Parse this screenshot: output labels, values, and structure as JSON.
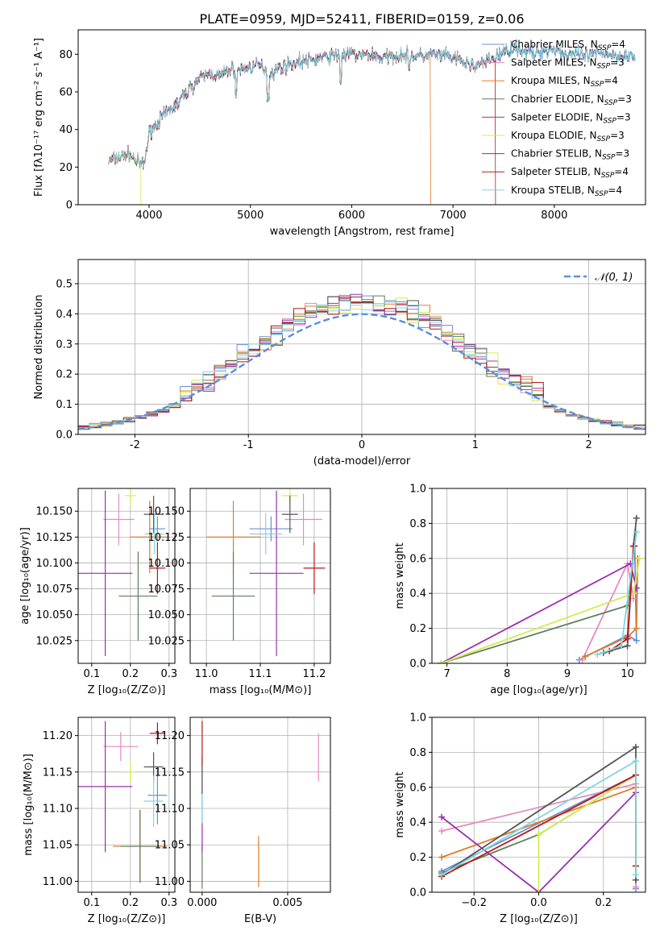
{
  "figure_title": "PLATE=0959, MJD=52411, FIBERID=0159, z=0.06",
  "colors": {
    "Chabrier MILES": "#6a8fd8",
    "Salpeter MILES": "#e88ac0",
    "Kroupa MILES": "#e07b28",
    "Chabrier ELODIE": "#5e7f5e",
    "Salpeter ELODIE": "#9b2fb0",
    "Kroupa ELODIE": "#d4ec50",
    "Chabrier STELIB": "#555555",
    "Salpeter STELIB": "#b81818",
    "Kroupa STELIB": "#7fd6e0",
    "gaussian": "#5b8fd8",
    "grid": "#b0b0b0"
  },
  "chart_data": [
    {
      "id": "spectrum",
      "type": "line",
      "xlabel": "wavelength [Angstrom, rest frame]",
      "ylabel": "Flux [fλ10⁻¹⁷ erg cm⁻² s⁻¹ A⁻¹]",
      "xlim": [
        3300,
        8900
      ],
      "ylim": [
        0,
        93
      ],
      "xticks": [
        4000,
        5000,
        6000,
        7000,
        8000
      ],
      "yticks": [
        0,
        20,
        40,
        60,
        80
      ],
      "grid": false,
      "legend": "top-right",
      "series": [
        {
          "name": "Chabrier MILES, N_SSP=4"
        },
        {
          "name": "Salpeter MILES, N_SSP=3"
        },
        {
          "name": "Kroupa MILES, N_SSP=4"
        },
        {
          "name": "Chabrier ELODIE, N_SSP=3"
        },
        {
          "name": "Salpeter ELODIE, N_SSP=3"
        },
        {
          "name": "Kroupa ELODIE, N_SSP=3"
        },
        {
          "name": "Chabrier STELIB, N_SSP=3"
        },
        {
          "name": "Salpeter STELIB, N_SSP=4"
        },
        {
          "name": "Kroupa STELIB, N_SSP=4"
        }
      ],
      "envelope": {
        "x": [
          3600,
          3700,
          3800,
          3900,
          3950,
          4000,
          4100,
          4200,
          4300,
          4400,
          4500,
          4600,
          4700,
          4800,
          4900,
          5000,
          5100,
          5200,
          5300,
          5400,
          5500,
          5600,
          5700,
          5800,
          5900,
          6000,
          6100,
          6200,
          6300,
          6400,
          6500,
          6600,
          6700,
          6800,
          6900,
          7000,
          7100,
          7200,
          7300,
          7400,
          7500,
          7600,
          7700,
          7800,
          7900,
          8000,
          8100,
          8200,
          8300,
          8400,
          8500,
          8600,
          8700,
          8800
        ],
        "y": [
          23,
          25,
          27,
          22,
          21,
          38,
          45,
          50,
          55,
          62,
          67,
          70,
          68,
          72,
          72,
          73,
          74,
          70,
          73,
          75,
          76,
          77,
          78,
          79,
          80,
          80,
          79,
          80,
          78,
          79,
          80,
          79,
          79,
          80,
          79,
          78,
          76,
          74,
          75,
          78,
          81,
          84,
          82,
          80,
          82,
          83,
          80,
          80,
          79,
          80,
          81,
          79,
          80,
          78
        ]
      },
      "dropouts": [
        {
          "x": 3920,
          "name": "Kroupa ELODIE"
        },
        {
          "x": 6780,
          "name": "Kroupa MILES"
        },
        {
          "x": 7420,
          "name": "Salpeter STELIB"
        }
      ]
    },
    {
      "id": "residuals",
      "type": "histogram",
      "xlabel": "(data-model)/error",
      "ylabel": "Normed distribution",
      "xlim": [
        -2.5,
        2.5
      ],
      "ylim": [
        0,
        0.58
      ],
      "xticks": [
        -2,
        -1,
        0,
        1,
        2
      ],
      "yticks": [
        0.0,
        0.1,
        0.2,
        0.3,
        0.4,
        0.5
      ],
      "grid": true,
      "legend": "top-right",
      "legend_label": "𝒩(0, 1)",
      "bin_width": 0.1
    },
    {
      "id": "age_vs_Z",
      "type": "scatter",
      "xlabel": "Z [log₁₀(Z/Z⊙)]",
      "ylabel": "age  [log₁₀(age/yr)]",
      "xlim": [
        0.065,
        0.315
      ],
      "ylim": [
        10.003,
        10.172
      ],
      "xticks": [
        0.1,
        0.2,
        0.3
      ],
      "yticks": [
        10.025,
        10.05,
        10.075,
        10.1,
        10.125,
        10.15
      ],
      "grid": true,
      "points": [
        {
          "name": "Chabrier MILES",
          "x": 0.27,
          "xerr": 0.02,
          "y": 10.133,
          "yerr": 0.012
        },
        {
          "name": "Salpeter MILES",
          "x": 0.17,
          "xerr": 0.04,
          "y": 10.142,
          "yerr": 0.025
        },
        {
          "name": "Kroupa MILES",
          "x": 0.25,
          "xerr": 0.05,
          "y": 10.125,
          "yerr": 0.035
        },
        {
          "name": "Chabrier ELODIE",
          "x": 0.22,
          "xerr": 0.05,
          "y": 10.068,
          "yerr": 0.043
        },
        {
          "name": "Salpeter ELODIE",
          "x": 0.135,
          "xerr": 0.07,
          "y": 10.09,
          "yerr": 0.08
        },
        {
          "name": "Kroupa ELODIE",
          "x": 0.2,
          "xerr": 0.015,
          "y": 10.165,
          "yerr": 0.01
        },
        {
          "name": "Chabrier STELIB",
          "x": 0.26,
          "xerr": 0.025,
          "y": 10.147,
          "yerr": 0.018
        },
        {
          "name": "Salpeter STELIB",
          "x": 0.27,
          "xerr": 0.02,
          "y": 10.095,
          "yerr": 0.025
        },
        {
          "name": "Kroupa STELIB",
          "x": 0.262,
          "xerr": 0.025,
          "y": 10.128,
          "yerr": 0.02
        }
      ]
    },
    {
      "id": "age_vs_mass",
      "type": "scatter",
      "xlabel": "mass [log₁₀(M/M⊙)]",
      "ylabel": "",
      "xlim": [
        10.97,
        11.23
      ],
      "ylim": [
        10.003,
        10.172
      ],
      "xticks": [
        11.0,
        11.1,
        11.2
      ],
      "yticks": [
        10.025,
        10.05,
        10.075,
        10.1,
        10.125,
        10.15
      ],
      "grid": true,
      "points": [
        {
          "name": "Chabrier MILES",
          "x": 11.12,
          "xerr": 0.04,
          "y": 10.133,
          "yerr": 0.012
        },
        {
          "name": "Salpeter MILES",
          "x": 11.18,
          "xerr": 0.035,
          "y": 10.142,
          "yerr": 0.025
        },
        {
          "name": "Kroupa MILES",
          "x": 11.05,
          "xerr": 0.05,
          "y": 10.125,
          "yerr": 0.035
        },
        {
          "name": "Chabrier ELODIE",
          "x": 11.05,
          "xerr": 0.04,
          "y": 10.068,
          "yerr": 0.043
        },
        {
          "name": "Salpeter ELODIE",
          "x": 11.13,
          "xerr": 0.05,
          "y": 10.09,
          "yerr": 0.08
        },
        {
          "name": "Kroupa ELODIE",
          "x": 11.155,
          "xerr": 0.015,
          "y": 10.165,
          "yerr": 0.01
        },
        {
          "name": "Chabrier STELIB",
          "x": 11.155,
          "xerr": 0.015,
          "y": 10.147,
          "yerr": 0.018
        },
        {
          "name": "Salpeter STELIB",
          "x": 11.2,
          "xerr": 0.02,
          "y": 10.095,
          "yerr": 0.025
        },
        {
          "name": "Kroupa STELIB",
          "x": 11.11,
          "xerr": 0.03,
          "y": 10.128,
          "yerr": 0.02
        }
      ]
    },
    {
      "id": "mass_vs_Z",
      "type": "scatter",
      "xlabel": "Z [log₁₀(Z/Z⊙)]",
      "ylabel": "mass [log₁₀(M/M⊙)]",
      "xlim": [
        0.065,
        0.315
      ],
      "ylim": [
        10.985,
        11.225
      ],
      "xticks": [
        0.1,
        0.2,
        0.3
      ],
      "yticks": [
        11.0,
        11.05,
        11.1,
        11.15,
        11.2
      ],
      "grid": true,
      "points": [
        {
          "name": "Chabrier MILES",
          "x": 0.27,
          "xerr": 0.025,
          "y": 11.118,
          "yerr": 0.04
        },
        {
          "name": "Salpeter MILES",
          "x": 0.175,
          "xerr": 0.045,
          "y": 11.185,
          "yerr": 0.02
        },
        {
          "name": "Kroupa MILES",
          "x": 0.225,
          "xerr": 0.07,
          "y": 11.048,
          "yerr": 0.05
        },
        {
          "name": "Chabrier ELODIE",
          "x": 0.225,
          "xerr": 0.05,
          "y": 11.048,
          "yerr": 0.05
        },
        {
          "name": "Salpeter ELODIE",
          "x": 0.135,
          "xerr": 0.07,
          "y": 11.13,
          "yerr": 0.09
        },
        {
          "name": "Kroupa ELODIE",
          "x": 0.2,
          "xerr": 0.015,
          "y": 11.15,
          "yerr": 0.015
        },
        {
          "name": "Chabrier STELIB",
          "x": 0.26,
          "xerr": 0.025,
          "y": 11.157,
          "yerr": 0.02
        },
        {
          "name": "Salpeter STELIB",
          "x": 0.27,
          "xerr": 0.02,
          "y": 11.203,
          "yerr": 0.015
        },
        {
          "name": "Kroupa STELIB",
          "x": 0.26,
          "xerr": 0.025,
          "y": 11.11,
          "yerr": 0.035
        }
      ]
    },
    {
      "id": "mass_vs_ebv",
      "type": "scatter",
      "xlabel": "E(B-V)",
      "ylabel": "",
      "xlim": [
        -0.0007,
        0.0075
      ],
      "ylim": [
        10.985,
        11.225
      ],
      "xticks": [
        0.0,
        0.005
      ],
      "xtick_labels": [
        "0.000",
        "0.005"
      ],
      "yticks": [
        11.0,
        11.05,
        11.1,
        11.15,
        11.2
      ],
      "grid": true,
      "points": [
        {
          "name": "Chabrier MILES",
          "x": 0.0,
          "y": 11.12,
          "yerr": 0.04
        },
        {
          "name": "Salpeter MILES",
          "x": 0.0068,
          "y": 11.17,
          "yerr": 0.033
        },
        {
          "name": "Kroupa MILES",
          "x": 0.0033,
          "y": 11.027,
          "yerr": 0.035
        },
        {
          "name": "Chabrier ELODIE",
          "x": 0.0,
          "y": 11.02,
          "yerr": 0.03
        },
        {
          "name": "Salpeter ELODIE",
          "x": 0.0,
          "y": 11.06,
          "yerr": 0.02
        },
        {
          "name": "Chabrier STELIB",
          "x": 0.0,
          "y": 11.145,
          "yerr": 0.025
        },
        {
          "name": "Salpeter STELIB",
          "x": 0.0,
          "y": 11.19,
          "yerr": 0.03
        },
        {
          "name": "Kroupa STELIB",
          "x": 0.0,
          "y": 11.1,
          "yerr": 0.02
        }
      ]
    },
    {
      "id": "weight_vs_age",
      "type": "line",
      "xlabel": "age  [log₁₀(age/yr)]",
      "ylabel": "mass weight",
      "xlim": [
        6.75,
        10.3
      ],
      "ylim": [
        0,
        1.0
      ],
      "xticks": [
        7,
        8,
        9,
        10
      ],
      "yticks": [
        0.0,
        0.2,
        0.4,
        0.6,
        0.8,
        1.0
      ],
      "grid": true,
      "series": [
        {
          "name": "Chabrier MILES",
          "x": [
            9.2,
            10.0,
            10.15,
            10.12
          ],
          "y": [
            0.02,
            0.16,
            0.13,
            0.67
          ]
        },
        {
          "name": "Salpeter MILES",
          "x": [
            9.25,
            10.0,
            10.1
          ],
          "y": [
            0.02,
            0.57,
            0.37
          ]
        },
        {
          "name": "Kroupa MILES",
          "x": [
            9.3,
            10.0,
            10.15,
            10.17
          ],
          "y": [
            0.04,
            0.15,
            0.2,
            0.6
          ]
        },
        {
          "name": "Chabrier ELODIE",
          "x": [
            6.9,
            10.0,
            10.12
          ],
          "y": [
            0.0,
            0.33,
            0.67
          ]
        },
        {
          "name": "Salpeter ELODIE",
          "x": [
            6.9,
            10.05,
            10.15
          ],
          "y": [
            0.0,
            0.57,
            0.43
          ]
        },
        {
          "name": "Kroupa ELODIE",
          "x": [
            6.9,
            10.1,
            10.2
          ],
          "y": [
            0.0,
            0.4,
            0.6
          ]
        },
        {
          "name": "Chabrier STELIB",
          "x": [
            9.6,
            10.0,
            10.1,
            10.15
          ],
          "y": [
            0.06,
            0.1,
            0.67,
            0.83
          ]
        },
        {
          "name": "Salpeter STELIB",
          "x": [
            9.7,
            10.0,
            10.1
          ],
          "y": [
            0.07,
            0.14,
            0.67
          ]
        },
        {
          "name": "Kroupa STELIB",
          "x": [
            9.5,
            9.9,
            10.15
          ],
          "y": [
            0.05,
            0.1,
            0.75
          ]
        }
      ]
    },
    {
      "id": "weight_vs_Z",
      "type": "line",
      "xlabel": "Z [log₁₀(Z/Z⊙)]",
      "ylabel": "mass weight",
      "xlim": [
        -0.33,
        0.33
      ],
      "ylim": [
        0,
        1.0
      ],
      "xticks": [
        -0.2,
        0.0,
        0.2
      ],
      "xtick_labels": [
        "−0.2",
        "0.0",
        "0.2"
      ],
      "yticks": [
        0.0,
        0.2,
        0.4,
        0.6,
        0.8,
        1.0
      ],
      "grid": true,
      "series": [
        {
          "name": "Chabrier MILES",
          "x": [
            -0.3,
            0.3,
            0.3
          ],
          "y": [
            0.12,
            0.67,
            0.02
          ]
        },
        {
          "name": "Salpeter MILES",
          "x": [
            -0.3,
            0.3,
            0.3
          ],
          "y": [
            0.35,
            0.62,
            0.03
          ]
        },
        {
          "name": "Kroupa MILES",
          "x": [
            -0.3,
            0.3,
            0.3
          ],
          "y": [
            0.2,
            0.6,
            0.15
          ]
        },
        {
          "name": "Chabrier ELODIE",
          "x": [
            -0.3,
            0.0,
            0.3
          ],
          "y": [
            0.11,
            0.33,
            0.67
          ]
        },
        {
          "name": "Salpeter ELODIE",
          "x": [
            -0.3,
            0.0,
            0.3
          ],
          "y": [
            0.43,
            0.0,
            0.57
          ]
        },
        {
          "name": "Kroupa ELODIE",
          "x": [
            0.0,
            0.0,
            0.3
          ],
          "y": [
            0.0,
            0.33,
            0.67
          ]
        },
        {
          "name": "Chabrier STELIB",
          "x": [
            -0.3,
            0.3,
            0.3
          ],
          "y": [
            0.1,
            0.83,
            0.07
          ]
        },
        {
          "name": "Salpeter STELIB",
          "x": [
            -0.3,
            0.3,
            0.3
          ],
          "y": [
            0.09,
            0.67,
            0.15
          ]
        },
        {
          "name": "Kroupa STELIB",
          "x": [
            -0.3,
            0.3,
            0.3
          ],
          "y": [
            0.1,
            0.75,
            0.1
          ]
        }
      ]
    }
  ]
}
